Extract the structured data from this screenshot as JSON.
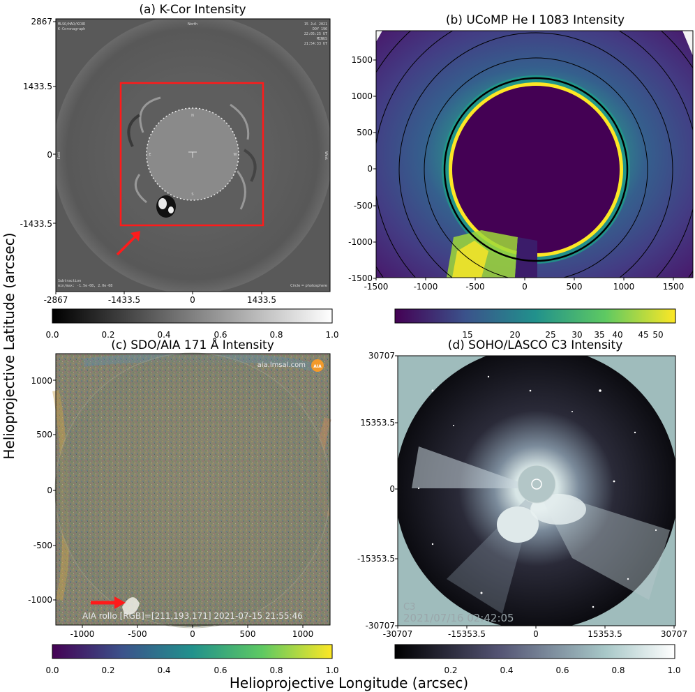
{
  "figure": {
    "ylabel": "Helioprojective Latitude (arcsec)",
    "xlabel": "Helioprojective Longitude (arcsec)"
  },
  "panels": [
    {
      "title": "(a) K-Cor Intensity",
      "xticks": [
        "-2867",
        "-1433.5",
        "0",
        "1433.5"
      ],
      "yticks": [
        "2867",
        "1433.5",
        "0",
        "-1433.5"
      ],
      "cbar_ticks": [
        "0.0",
        "0.2",
        "0.4",
        "0.6",
        "0.8",
        "1.0"
      ],
      "overlay": {
        "top_left": [
          "MLSO/HAO/KCOR",
          "K-Coronagraph"
        ],
        "top_center": "North",
        "top_right": [
          "15 Jul 2021",
          "DOY 196",
          "22:05:25 UT",
          "MINUS",
          "21:54:33 UT"
        ],
        "left": "East",
        "right": "West",
        "bottom_left": [
          "Subtraction",
          "min/max: -1.5e-08, 2.0e-08"
        ],
        "bottom_right": "Circle = photosphere",
        "limb_marks": [
          "N",
          "E",
          "W",
          "S"
        ]
      }
    },
    {
      "title": "(b) UCoMP He I 1083 Intensity",
      "xticks": [
        "-1500",
        "-1000",
        "-500",
        "0",
        "500",
        "1000",
        "1500"
      ],
      "yticks": [
        "1500",
        "1000",
        "500",
        "0",
        "-500",
        "-1000",
        "-1500"
      ],
      "cbar_ticks": [
        "15",
        "20",
        "25",
        "30",
        "35",
        "40",
        "45",
        "50"
      ]
    },
    {
      "title": "(c) SDO/AIA 171 Å Intensity",
      "xticks": [
        "-1000",
        "-500",
        "0",
        "500",
        "1000"
      ],
      "yticks": [
        "1000",
        "500",
        "0",
        "-500",
        "-1000"
      ],
      "cbar_ticks": [
        "0.0",
        "0.2",
        "0.4",
        "0.6",
        "0.8",
        "1.0"
      ],
      "overlay": {
        "top_right": "aia.lmsal.com",
        "logo": "AIA",
        "bottom": "AIA rollo [RGB]=[211,193,171] 2021-07-15 21:55:46"
      }
    },
    {
      "title": "(d) SOHO/LASCO C3 Intensity",
      "xticks": [
        "-30707",
        "-15353.5",
        "0",
        "15353.5",
        "30707"
      ],
      "yticks": [
        "30707",
        "15353.5",
        "0",
        "-15353.5",
        "-30707"
      ],
      "cbar_ticks": [
        "0.2",
        "0.4",
        "0.6",
        "0.8",
        "1.0"
      ],
      "overlay": {
        "instrument": "C3",
        "timestamp": "2021/07/16 02:42:05"
      }
    }
  ],
  "colors": {
    "annotation": "#ff1a1a",
    "kcor_bg": "#5a5a5a",
    "ucomp_disk": "#440154",
    "ucomp_ring": "#fde725",
    "lasco_bg": "#9fbcbc"
  }
}
